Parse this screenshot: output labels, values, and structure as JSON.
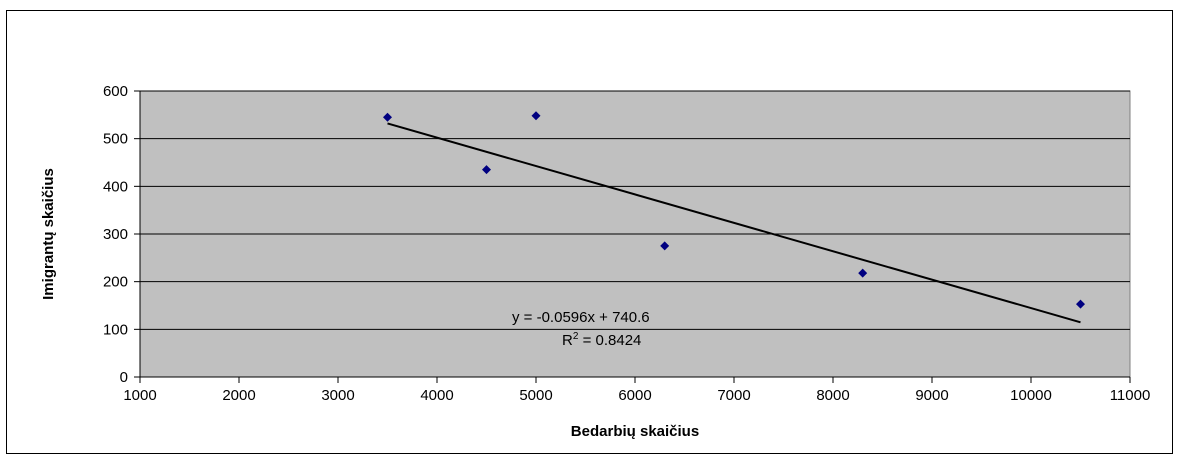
{
  "chart_data": {
    "type": "scatter",
    "title": "",
    "xlabel": "Bedarbių skaičius",
    "ylabel": "Imigrantų skaičius",
    "xlim": [
      1000,
      11000
    ],
    "ylim": [
      0,
      600
    ],
    "x_ticks": [
      1000,
      2000,
      3000,
      4000,
      5000,
      6000,
      7000,
      8000,
      9000,
      10000,
      11000
    ],
    "y_ticks": [
      0,
      100,
      200,
      300,
      400,
      500,
      600
    ],
    "grid": "horizontal",
    "legend": "none",
    "plot_background": "#c0c0c0",
    "marker_color": "#000080",
    "trendline_color": "#000000",
    "series": [
      {
        "x": [
          3500,
          4500,
          5000,
          6300,
          8300,
          10500
        ],
        "y": [
          545,
          435,
          548,
          275,
          218,
          153
        ]
      }
    ],
    "trendline": {
      "slope": -0.0596,
      "intercept": 740.6,
      "x_range": [
        3500,
        10500
      ],
      "equation_label": "y = -0.0596x + 740.6",
      "r2_prefix": "R",
      "r2_sup": "2",
      "r2_value": " = 0.8424"
    }
  }
}
